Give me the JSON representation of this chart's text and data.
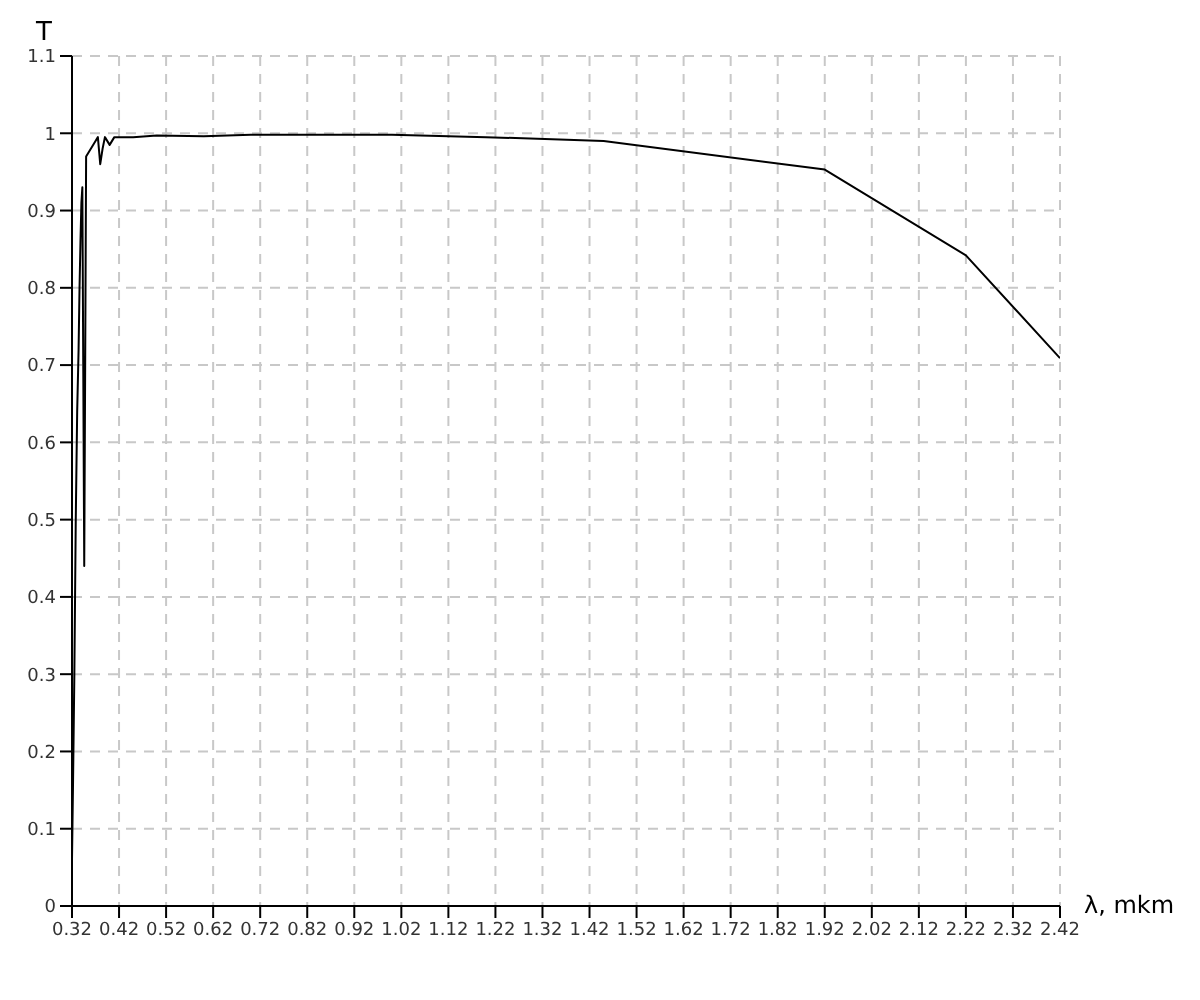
{
  "chart_data": {
    "type": "line",
    "xlabel": "λ, mkm",
    "ylabel": "T",
    "x": [
      0.32,
      0.322,
      0.325,
      0.328,
      0.331,
      0.334,
      0.336,
      0.338,
      0.34,
      0.342,
      0.344,
      0.346,
      0.348,
      0.35,
      0.36,
      0.37,
      0.375,
      0.38,
      0.385,
      0.39,
      0.4,
      0.41,
      0.45,
      0.5,
      0.6,
      0.7,
      1.0,
      1.2,
      1.45,
      1.92,
      2.22,
      2.42
    ],
    "series": [
      {
        "color": "#000000",
        "values": [
          0.06,
          0.15,
          0.3,
          0.5,
          0.64,
          0.72,
          0.8,
          0.86,
          0.91,
          0.93,
          0.69,
          0.44,
          0.7,
          0.97,
          0.98,
          0.99,
          0.995,
          0.96,
          0.98,
          0.995,
          0.985,
          0.995,
          0.995,
          0.997,
          0.996,
          0.998,
          0.998,
          0.995,
          0.99,
          0.953,
          0.842,
          0.709
        ]
      }
    ],
    "xlim": [
      0.32,
      2.42
    ],
    "xticks": [
      0.32,
      0.42,
      0.52,
      0.62,
      0.72,
      0.82,
      0.92,
      1.02,
      1.12,
      1.22,
      1.32,
      1.42,
      1.52,
      1.62,
      1.72,
      1.82,
      1.92,
      2.02,
      2.12,
      2.22,
      2.32,
      2.42
    ],
    "ylim": [
      0,
      1.1
    ],
    "yticks": [
      0,
      0.1,
      0.2,
      0.3,
      0.4,
      0.5,
      0.6,
      0.7,
      0.8,
      0.9,
      1,
      1.1
    ],
    "grid": true,
    "marker": "none",
    "line_style": "solid",
    "legend": false
  }
}
